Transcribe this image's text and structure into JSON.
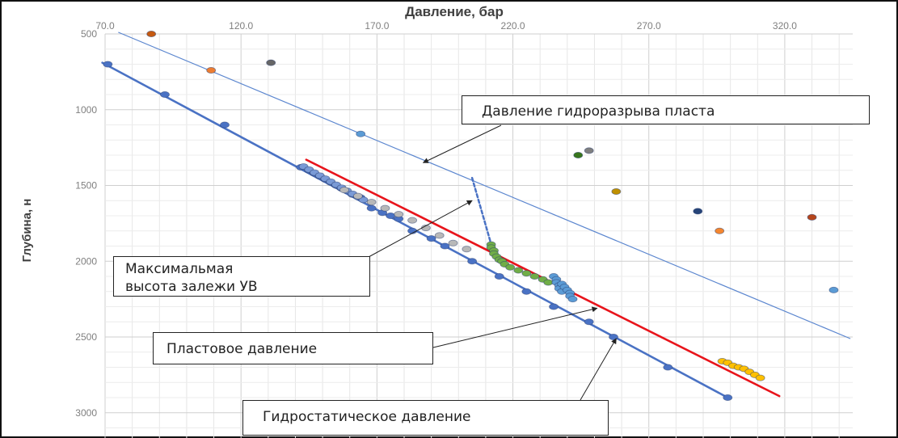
{
  "chart_data": {
    "type": "scatter",
    "title": "",
    "xlabel": "Давление, бар",
    "ylabel": "Глубина, н",
    "xlim": [
      70,
      345
    ],
    "ylim": [
      3100,
      500
    ],
    "y_inverted": true,
    "x_axis_position": "top",
    "grid": true,
    "x_ticks": [
      70,
      120,
      170,
      220,
      270,
      320
    ],
    "x_tick_labels": [
      "70.0",
      "120.0",
      "170.0",
      "220.0",
      "270.0",
      "320.0"
    ],
    "y_ticks": [
      500,
      1000,
      1500,
      2000,
      2500,
      3000
    ],
    "y_tick_labels": [
      "500",
      "1000",
      "1500",
      "2000",
      "2500",
      "3000"
    ],
    "lines": [
      {
        "role": "hydrostatic",
        "color": "#4a72c4",
        "x": [
          69,
          299
        ],
        "y": [
          690,
          2900
        ]
      },
      {
        "role": "formation",
        "color": "#e8141b",
        "x": [
          144,
          318
        ],
        "y": [
          1330,
          2890
        ]
      },
      {
        "role": "fracture",
        "color": "#5b86cf",
        "x": [
          75,
          344
        ],
        "y": [
          490,
          2510
        ]
      },
      {
        "role": "max-hc-column",
        "color": "#4a72c4",
        "dashed": true,
        "x": [
          205,
          213
        ],
        "y": [
          1450,
          1950
        ]
      }
    ],
    "series": [
      {
        "color": "#4a72c4",
        "x": [
          71,
          92,
          114,
          142,
          145,
          147,
          149,
          151,
          153,
          155,
          157,
          161,
          164,
          168,
          172,
          175,
          178,
          183,
          190,
          195,
          205,
          215,
          225,
          235,
          248,
          257,
          277,
          299
        ],
        "y": [
          700,
          900,
          1100,
          1380,
          1400,
          1420,
          1440,
          1460,
          1480,
          1500,
          1520,
          1560,
          1580,
          1650,
          1680,
          1700,
          1720,
          1800,
          1850,
          1900,
          2000,
          2100,
          2200,
          2300,
          2400,
          2500,
          2700,
          2900
        ]
      },
      {
        "color": "#7a9ad6",
        "x": [
          143,
          145,
          147,
          149,
          151,
          153,
          155,
          157,
          159,
          161,
          163,
          165
        ],
        "y": [
          1375,
          1395,
          1415,
          1435,
          1455,
          1475,
          1495,
          1515,
          1535,
          1555,
          1575,
          1595
        ]
      },
      {
        "color": "#b8b8b8",
        "x": [
          158,
          163,
          168,
          173,
          178,
          183,
          188,
          193,
          198,
          203
        ],
        "y": [
          1530,
          1570,
          1610,
          1650,
          1690,
          1730,
          1780,
          1830,
          1880,
          1920
        ]
      },
      {
        "color": "#70ad47",
        "x": [
          212,
          212,
          213,
          213,
          214,
          215,
          216,
          217,
          219,
          222,
          225,
          228,
          231,
          233
        ],
        "y": [
          1890,
          1910,
          1930,
          1950,
          1970,
          1990,
          2000,
          2020,
          2040,
          2060,
          2080,
          2100,
          2120,
          2140
        ]
      },
      {
        "color": "#5b9bd5",
        "x": [
          235,
          236,
          236,
          237,
          237,
          238,
          238,
          239,
          240,
          241,
          241,
          242
        ],
        "y": [
          2100,
          2120,
          2140,
          2160,
          2180,
          2200,
          2150,
          2170,
          2190,
          2210,
          2230,
          2250
        ]
      },
      {
        "color": "#ffc000",
        "x": [
          297,
          299,
          301,
          303,
          305,
          307,
          309,
          311
        ],
        "y": [
          2660,
          2670,
          2690,
          2700,
          2710,
          2730,
          2750,
          2770
        ]
      },
      {
        "color": "#c55a11",
        "x": [
          87
        ],
        "y": [
          500
        ]
      },
      {
        "color": "#ed7d31",
        "x": [
          109
        ],
        "y": [
          740
        ]
      },
      {
        "color": "#666666",
        "x": [
          131
        ],
        "y": [
          690
        ]
      },
      {
        "color": "#5b9bd5",
        "x": [
          164
        ],
        "y": [
          1160
        ]
      },
      {
        "color": "#38761d",
        "x": [
          244
        ],
        "y": [
          1300
        ]
      },
      {
        "color": "#7f7f7f",
        "x": [
          248
        ],
        "y": [
          1270
        ]
      },
      {
        "color": "#bf9000",
        "x": [
          258
        ],
        "y": [
          1540
        ]
      },
      {
        "color": "#264478",
        "x": [
          288
        ],
        "y": [
          1670
        ]
      },
      {
        "color": "#f4862f",
        "x": [
          296
        ],
        "y": [
          1800
        ]
      },
      {
        "color": "#b5451b",
        "x": [
          330
        ],
        "y": [
          1710
        ]
      },
      {
        "color": "#5b9bd5",
        "x": [
          338
        ],
        "y": [
          2190
        ]
      }
    ],
    "annotations": [
      {
        "text": "Давление гидроразрыва пласта",
        "target": [
          187,
          1350
        ]
      },
      {
        "text": "Максимальмая высота залежи УВ",
        "target": [
          205,
          1600
        ]
      },
      {
        "text": "Пластовое давление",
        "target": [
          251,
          2310
        ]
      },
      {
        "text": "Гидростатическое давление",
        "target": [
          258,
          2510
        ]
      }
    ]
  },
  "callouts": {
    "fracture": "Давление гидроразрыва пласта",
    "maxheight_line1": "Максимальмая",
    "maxheight_line2": "высота залежи УВ",
    "formation": "Пластовое давление",
    "hydrostatic": "Гидростатическое давление"
  },
  "colors": {
    "frame": "#111111",
    "grid": "#d9d9d9",
    "tick_text": "#7f7f7f",
    "axis_title": "#404040",
    "arrow": "#222222"
  }
}
